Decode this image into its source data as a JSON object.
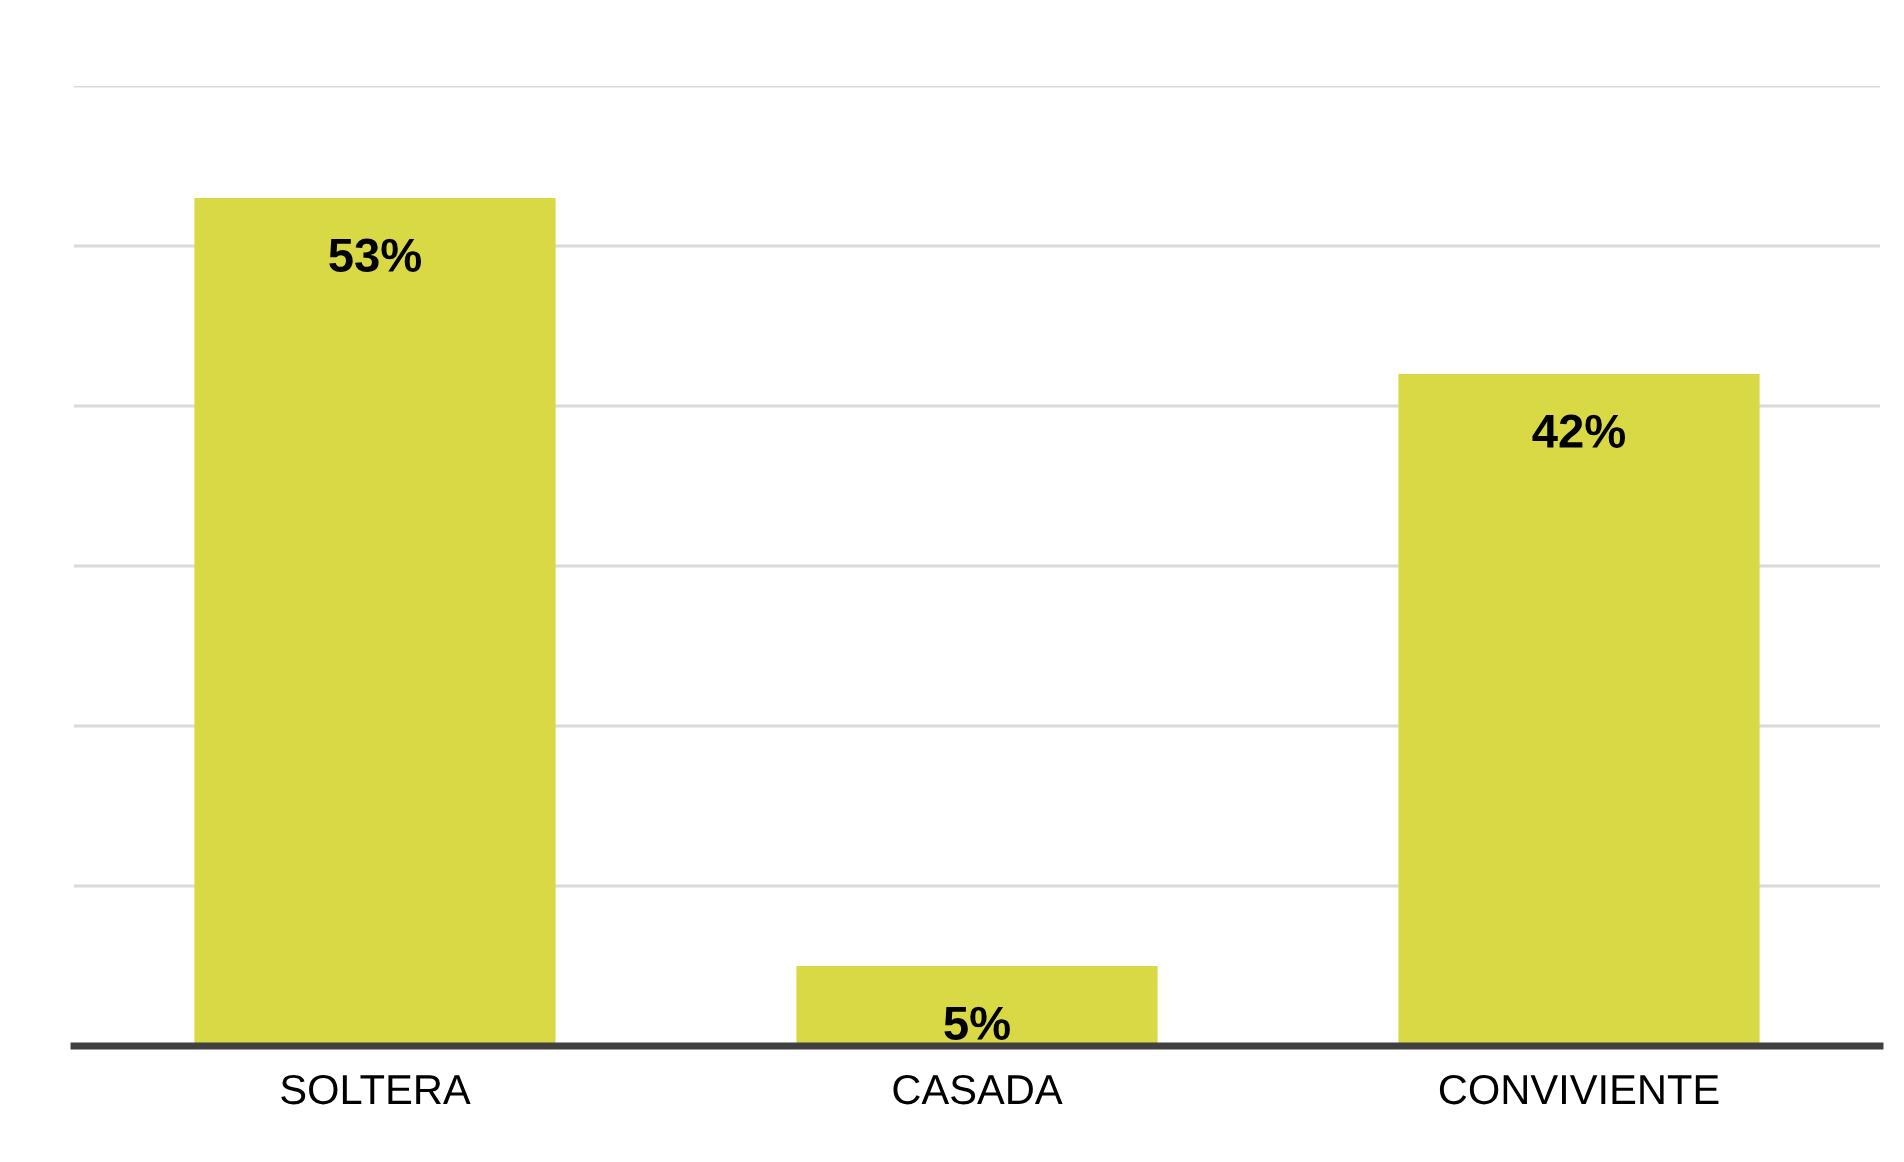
{
  "chart_data": {
    "type": "bar",
    "categories": [
      "SOLTERA",
      "CASADA",
      "CONVIVIENTE"
    ],
    "values": [
      53,
      5,
      42
    ],
    "value_labels": [
      "53%",
      "5%",
      "42%"
    ],
    "color": "#d9d945",
    "ylim": [
      0,
      60
    ],
    "yticks": [
      {
        "value": 0,
        "label": null
      },
      {
        "value": 10,
        "label": null
      },
      {
        "value": 20,
        "label": null
      },
      {
        "value": 30,
        "label": null
      },
      {
        "value": 40,
        "label": null
      },
      {
        "value": 50,
        "label": null
      },
      {
        "value": 60,
        "label": null
      }
    ],
    "grid": "y",
    "tick_labels": "x",
    "legend": false
  }
}
